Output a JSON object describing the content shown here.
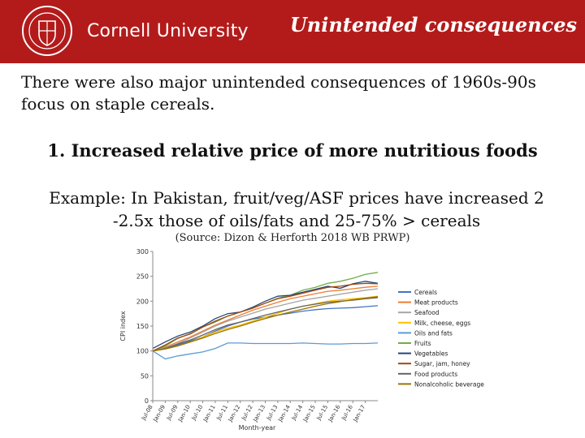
{
  "header": {
    "university": "Cornell University",
    "title": "Unintended consequences"
  },
  "slide": {
    "intro": "There were also major unintended consequences of 1960s-90s focus on staple cereals.",
    "point": "1. Increased relative price of more nutritious foods",
    "example_line1": "Example: In Pakistan, fruit/veg/ASF prices have increased 2",
    "example_line2": "-2.5x those of oils/fats and 25-75% > cereals",
    "source": "(Source: Dizon & Herforth 2018 WB PRWP)"
  },
  "chart_data": {
    "type": "line",
    "title": "",
    "xlabel": "Month-year",
    "ylabel": "CPI index",
    "ylim": [
      0,
      300
    ],
    "yticks": [
      "0",
      "50",
      "100",
      "150",
      "200",
      "250",
      "300"
    ],
    "yticks_values": [
      0,
      50,
      100,
      150,
      200,
      250,
      300
    ],
    "x": [
      "Jul-08",
      "Jan-09",
      "Jul-09",
      "Jan-10",
      "Jul-10",
      "Jan-11",
      "Jul-11",
      "Jan-12",
      "Jul-12",
      "Jan-13",
      "Jul-13",
      "Jan-14",
      "Jul-14",
      "Jan-15",
      "Jul-15",
      "Jan-16",
      "Jul-16",
      "Jan-17",
      "Jul-17"
    ],
    "xticks": [
      "Jul-08",
      "Jan-09",
      "Jul-09",
      "Jan-10",
      "Jul-10",
      "Jan-11",
      "Jul-11",
      "Jan-12",
      "Jul-12",
      "Jan-13",
      "Jul-13",
      "Jan-14",
      "Jul-14",
      "Jan-15",
      "Jul-15",
      "Jan-16",
      "Jul-16",
      "Jan-17"
    ],
    "legend_position": "right",
    "grid": false,
    "series": [
      {
        "name": "Cereals",
        "color": "#4472c4",
        "values": [
          100,
          105,
          112,
          120,
          128,
          140,
          150,
          158,
          164,
          168,
          172,
          176,
          180,
          183,
          185,
          186,
          187,
          189,
          191
        ]
      },
      {
        "name": "Meat products",
        "color": "#ed7d31",
        "values": [
          100,
          108,
          118,
          128,
          140,
          152,
          162,
          172,
          182,
          190,
          198,
          205,
          210,
          215,
          220,
          222,
          225,
          228,
          230
        ]
      },
      {
        "name": "Seafood",
        "color": "#a5a5a5",
        "values": [
          100,
          106,
          115,
          126,
          138,
          150,
          160,
          168,
          176,
          184,
          190,
          196,
          202,
          206,
          210,
          214,
          218,
          222,
          225
        ]
      },
      {
        "name": "Milk, cheese, eggs",
        "color": "#ffc000",
        "values": [
          100,
          104,
          110,
          118,
          128,
          138,
          146,
          152,
          160,
          168,
          176,
          184,
          190,
          195,
          200,
          203,
          205,
          207,
          210
        ]
      },
      {
        "name": "Oils and fats",
        "color": "#5b9bd5",
        "values": [
          100,
          84,
          90,
          94,
          98,
          105,
          116,
          116,
          115,
          115,
          115,
          115,
          116,
          115,
          114,
          114,
          115,
          115,
          116
        ]
      },
      {
        "name": "Fruits",
        "color": "#70ad47",
        "values": [
          100,
          110,
          125,
          135,
          148,
          158,
          170,
          178,
          186,
          196,
          206,
          212,
          222,
          228,
          236,
          240,
          246,
          254,
          258
        ]
      },
      {
        "name": "Vegetables",
        "color": "#264478",
        "values": [
          105,
          118,
          130,
          138,
          150,
          165,
          175,
          178,
          188,
          200,
          210,
          212,
          218,
          224,
          230,
          226,
          235,
          240,
          236
        ]
      },
      {
        "name": "Sugar, jam, honey",
        "color": "#9e480e",
        "values": [
          100,
          112,
          126,
          134,
          148,
          160,
          170,
          178,
          186,
          196,
          205,
          210,
          216,
          222,
          228,
          230,
          234,
          236,
          235
        ]
      },
      {
        "name": "Food products",
        "color": "#636363",
        "values": [
          100,
          105,
          114,
          122,
          132,
          143,
          152,
          158,
          165,
          172,
          178,
          184,
          190,
          194,
          198,
          200,
          202,
          205,
          207
        ]
      },
      {
        "name": "Nonalcoholic beverage",
        "color": "#997300",
        "values": [
          100,
          104,
          110,
          118,
          126,
          135,
          143,
          150,
          158,
          165,
          172,
          178,
          184,
          190,
          195,
          199,
          203,
          206,
          209
        ]
      }
    ]
  }
}
